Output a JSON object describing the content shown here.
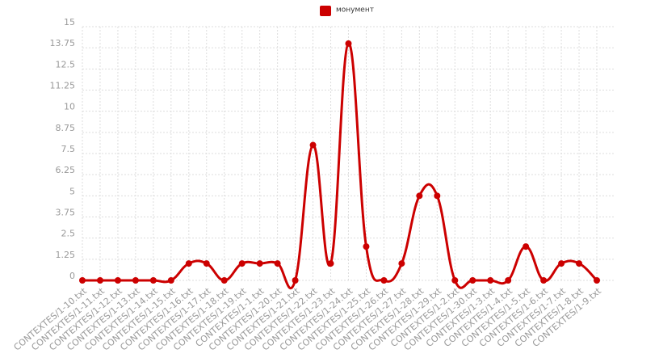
{
  "chart_data": {
    "type": "line",
    "legend_position": "top",
    "categories": [
      "CONTEXTES/1-10.txt",
      "CONTEXTES/1-11.txt",
      "CONTEXTES/1-12.txt",
      "CONTEXTES/1-13.txt",
      "CONTEXTES/1-14.txt",
      "CONTEXTES/1-15.txt",
      "CONTEXTES/1-16.txt",
      "CONTEXTES/1-17.txt",
      "CONTEXTES/1-18.txt",
      "CONTEXTES/1-19.txt",
      "CONTEXTES/1-1.txt",
      "CONTEXTES/1-20.txt",
      "CONTEXTES/1-21.txt",
      "CONTEXTES/1-22.txt",
      "CONTEXTES/1-23.txt",
      "CONTEXTES/1-24.txt",
      "CONTEXTES/1-25.txt",
      "CONTEXTES/1-26.txt",
      "CONTEXTES/1-27.txt",
      "CONTEXTES/1-28.txt",
      "CONTEXTES/1-29.txt",
      "CONTEXTES/1-2.txt",
      "CONTEXTES/1-30.txt",
      "CONTEXTES/1-3.txt",
      "CONTEXTES/1-4.txt",
      "CONTEXTES/1-5.txt",
      "CONTEXTES/1-6.txt",
      "CONTEXTES/1-7.txt",
      "CONTEXTES/1-8.txt",
      "CONTEXTES/1-9.txt"
    ],
    "series": [
      {
        "name": "монумент",
        "color": "#cc0000",
        "values": [
          0,
          0,
          0,
          0,
          0,
          0,
          1,
          1,
          0,
          1,
          1,
          1,
          0,
          8,
          1,
          14,
          2,
          0,
          1,
          5,
          5,
          0,
          0,
          0,
          0,
          2,
          0,
          1,
          1,
          0
        ]
      }
    ],
    "ylim": [
      0,
      15
    ],
    "yticks": [
      0,
      1.25,
      2.5,
      3.75,
      5,
      6.25,
      7.5,
      8.75,
      10,
      11.25,
      12.5,
      13.75,
      15
    ],
    "grid": true
  }
}
